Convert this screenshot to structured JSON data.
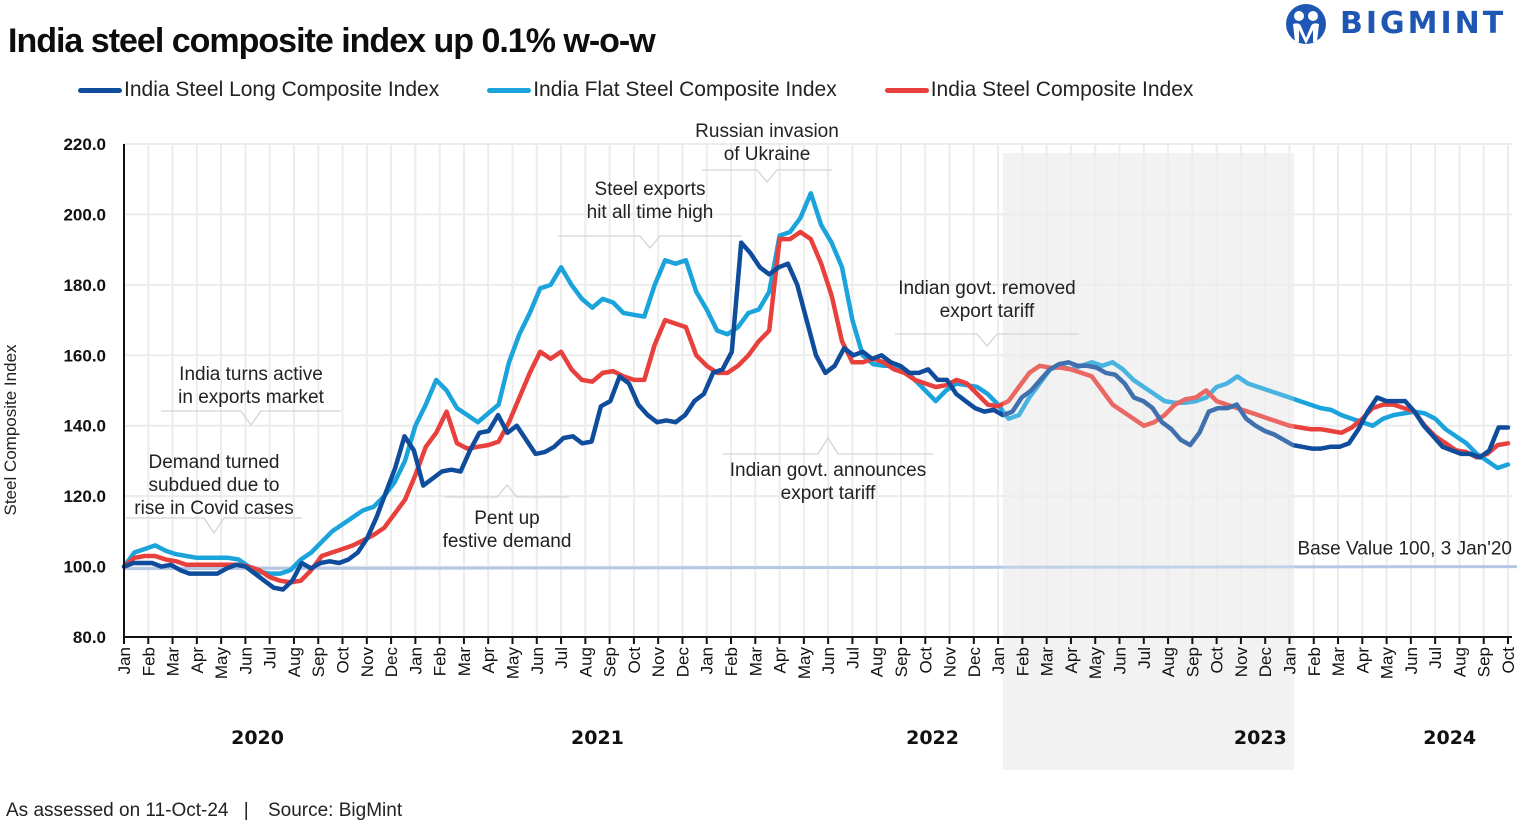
{
  "header": {
    "title": "India steel composite index up 0.1% w-o-w",
    "brand": "BIGMINT"
  },
  "footer": {
    "assessed": "As assessed on 11-Oct-24",
    "separator": "|",
    "source": "Source: BigMint"
  },
  "chart_data": {
    "type": "line",
    "title": "India steel composite index up 0.1% w-o-w",
    "xlabel": "",
    "ylabel": "Steel Composite Index",
    "ylim": [
      80,
      220
    ],
    "yticks": [
      80,
      100,
      120,
      140,
      160,
      180,
      200,
      220
    ],
    "ytick_labels": [
      "80.0",
      "100.0",
      "120.0",
      "140.0",
      "160.0",
      "180.0",
      "200.0",
      "220.0"
    ],
    "grid": true,
    "legend_position": "top",
    "x_months": [
      "Jan",
      "Feb",
      "Mar",
      "Apr",
      "May",
      "Jun",
      "Jul",
      "Aug",
      "Sep",
      "Oct",
      "Nov",
      "Dec",
      "Jan",
      "Feb",
      "Mar",
      "Apr",
      "May",
      "Jun",
      "Jul",
      "Aug",
      "Sep",
      "Oct",
      "Nov",
      "Dec",
      "Jan",
      "Feb",
      "Mar",
      "Apr",
      "May",
      "Jun",
      "Jul",
      "Aug",
      "Sep",
      "Oct",
      "Nov",
      "Dec",
      "Jan",
      "Feb",
      "Mar",
      "Apr",
      "May",
      "Jun",
      "Jul",
      "Aug",
      "Sep",
      "Oct",
      "Nov",
      "Dec",
      "Jan",
      "Feb",
      "Mar",
      "Apr",
      "May",
      "Jun",
      "Jul",
      "Aug",
      "Sep",
      "Oct"
    ],
    "years": [
      {
        "label": "2020",
        "center_month_index": 5.5
      },
      {
        "label": "2021",
        "center_month_index": 19.5
      },
      {
        "label": "2022",
        "center_month_index": 33.3
      },
      {
        "label": "2023",
        "center_month_index": 46.8
      },
      {
        "label": "2024",
        "center_month_index": 54.6
      }
    ],
    "x_step": "half-month",
    "series": [
      {
        "name": "India Steel Long Composite Index",
        "color": "#0f4c9c",
        "values": [
          100,
          101,
          101,
          101,
          100,
          100.5,
          99,
          98,
          98,
          98,
          98,
          99.5,
          100.5,
          100,
          98,
          96,
          94,
          93.5,
          96,
          101,
          99.5,
          101,
          101.5,
          101,
          102,
          104,
          108,
          114,
          121,
          128,
          137,
          133,
          123,
          125,
          127,
          127.5,
          127,
          133,
          138,
          138.5,
          143,
          138,
          140,
          136,
          132,
          132.5,
          134,
          136.5,
          137,
          135,
          135.5,
          145.5,
          147,
          154,
          152,
          146,
          143,
          141,
          141.5,
          141,
          143,
          147,
          149,
          155,
          156,
          161,
          192,
          189,
          185,
          183,
          185,
          186,
          180,
          170,
          160,
          155,
          157,
          162,
          160,
          161,
          159,
          160,
          158,
          157,
          155,
          155,
          156,
          153,
          153,
          149,
          147,
          145,
          144,
          144.5,
          143,
          144,
          148,
          150,
          153,
          156,
          157.5,
          158,
          157,
          157,
          156.5,
          155,
          154.5,
          152,
          148,
          147,
          145,
          141,
          139,
          136,
          134.5,
          138,
          144,
          145,
          145,
          146,
          142,
          140,
          138.5,
          137.5,
          136,
          134.5,
          134,
          133.5,
          133.5,
          134,
          134,
          135,
          139,
          144,
          148,
          147,
          147,
          147,
          144,
          140,
          137,
          134,
          133,
          132,
          132,
          131,
          133,
          139.5,
          139.5
        ]
      },
      {
        "name": "India Flat Steel Composite Index",
        "color": "#1ba3dc",
        "values": [
          100,
          104,
          105,
          106,
          104.5,
          103.5,
          103,
          102.5,
          102.5,
          102.5,
          102.5,
          102,
          100,
          98.5,
          98,
          98,
          99,
          102,
          104,
          107,
          110,
          112,
          114,
          116,
          117,
          120,
          124,
          130,
          140,
          146,
          153,
          150,
          145,
          143,
          141,
          143.5,
          146,
          158,
          166,
          172,
          179,
          180,
          185,
          180,
          176,
          173.5,
          176,
          175,
          172,
          171.5,
          171,
          180,
          187,
          186,
          187,
          178,
          173,
          167,
          166,
          168,
          172,
          173,
          178,
          194,
          195,
          199,
          206,
          197,
          192,
          185,
          170,
          160,
          157.5,
          157,
          157,
          156,
          153,
          150,
          147,
          150,
          152,
          151.5,
          151,
          149,
          146,
          142,
          143,
          148,
          152,
          156,
          157,
          156,
          157,
          158,
          157,
          158,
          156,
          153,
          151,
          149,
          147,
          146.5,
          146.5,
          147,
          148,
          151,
          152,
          154,
          152,
          151,
          150,
          149,
          148,
          147,
          146,
          145,
          144.5,
          143,
          142,
          141,
          140,
          142,
          143,
          143.5,
          144,
          143.5,
          142,
          139,
          137,
          135,
          132,
          130,
          128,
          129
        ]
      },
      {
        "name": "India Steel Composite Index",
        "color": "#e8403c",
        "values": [
          100,
          102.5,
          103,
          103,
          102,
          101.5,
          100.5,
          100.5,
          100.5,
          100.5,
          100.5,
          100.5,
          100,
          99,
          97,
          96,
          95.5,
          96,
          99,
          103,
          104,
          105,
          106,
          107.5,
          109,
          111,
          115,
          119,
          126,
          134,
          138,
          144,
          135,
          133.5,
          134,
          134.5,
          135.5,
          141,
          148,
          155,
          161,
          159,
          161,
          156,
          153,
          152.5,
          155,
          155.5,
          154,
          153,
          153,
          163,
          170,
          169,
          168,
          160,
          157,
          155,
          155,
          157,
          160,
          164,
          167,
          193,
          193,
          195,
          193,
          186,
          177,
          164,
          158,
          158,
          159,
          158,
          156,
          155,
          153,
          152,
          151,
          151.5,
          153,
          152,
          149,
          146,
          145.5,
          147,
          151,
          155,
          157,
          156.5,
          156.5,
          156,
          155,
          154,
          150,
          146,
          144,
          142,
          140,
          141,
          143,
          146,
          147.5,
          148,
          150,
          147,
          146,
          145,
          144,
          143,
          142,
          141,
          140,
          139.5,
          139,
          139,
          138.5,
          138,
          139.5,
          142,
          145,
          146,
          146,
          145,
          144,
          140,
          137,
          135,
          133,
          132.5,
          131,
          132,
          134.5,
          135
        ]
      }
    ],
    "reference_line": {
      "value": 100,
      "label": "Base Value 100, 3 Jan'20",
      "color": "#b4c8e6"
    },
    "shaded_region": {
      "from_month_index": 36.2,
      "to_month_index": 48.2,
      "color": "#f2f2f2"
    },
    "annotations": [
      {
        "lines": [
          "Demand turned",
          "subdued due to",
          "rise in Covid cases"
        ],
        "pointer": "down",
        "month_index": 3.6
      },
      {
        "lines": [
          "India turns active",
          "in exports market"
        ],
        "pointer": "down",
        "month_index": 5.2
      },
      {
        "lines": [
          "Pent up",
          "festive demand"
        ],
        "pointer": "up",
        "month_index": 15.8
      },
      {
        "lines": [
          "Steel exports",
          "hit all time high"
        ],
        "pointer": "down",
        "month_index": 21.2
      },
      {
        "lines": [
          "Russian invasion",
          "of Ukraine"
        ],
        "pointer": "down",
        "month_index": 26.2
      },
      {
        "lines": [
          "Indian govt. announces",
          "export tariff"
        ],
        "pointer": "up",
        "month_index": 29.1
      },
      {
        "lines": [
          "Indian govt. removed",
          "export tariff"
        ],
        "pointer": "down",
        "month_index": 35.2
      }
    ]
  }
}
